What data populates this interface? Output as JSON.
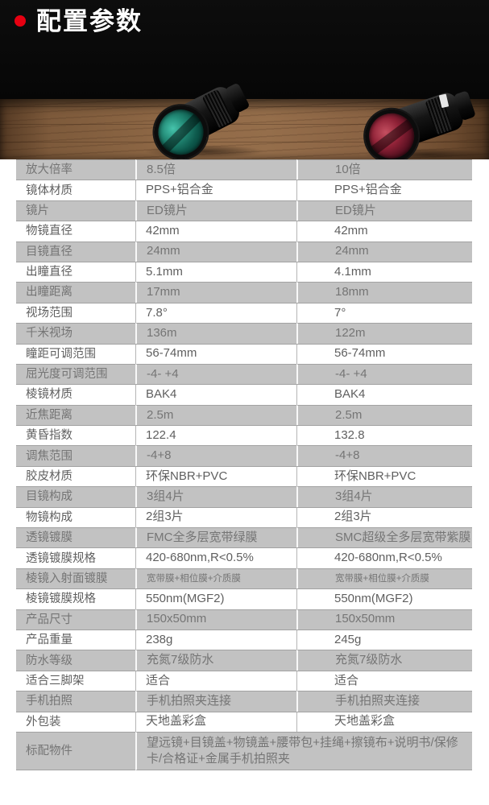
{
  "header": {
    "title": "配置参数"
  },
  "colors": {
    "bullet_red": "#e60011",
    "row_gray": "#c2c2c2",
    "row_white": "#ffffff",
    "lens_left": "#238b77",
    "lens_right": "#8e2136"
  },
  "table": {
    "rows": [
      {
        "label": "放大倍率",
        "v1": "8.5倍",
        "v2": "10倍"
      },
      {
        "label": "镜体材质",
        "v1": "PPS+铝合金",
        "v2": "PPS+铝合金"
      },
      {
        "label": "镜片",
        "v1": "ED镜片",
        "v2": "ED镜片"
      },
      {
        "label": "物镜直径",
        "v1": "42mm",
        "v2": "42mm"
      },
      {
        "label": "目镜直径",
        "v1": "24mm",
        "v2": "24mm"
      },
      {
        "label": "出瞳直径",
        "v1": "5.1mm",
        "v2": "4.1mm"
      },
      {
        "label": "出瞳距离",
        "v1": "17mm",
        "v2": "18mm"
      },
      {
        "label": "视场范围",
        "v1": "7.8°",
        "v2": "7°"
      },
      {
        "label": "千米视场",
        "v1": "136m",
        "v2": "122m"
      },
      {
        "label": "瞳距可调范围",
        "v1": "56-74mm",
        "v2": "56-74mm"
      },
      {
        "label": "屈光度可调范围",
        "v1": "-4- +4",
        "v2": "-4- +4"
      },
      {
        "label": "棱镜材质",
        "v1": "BAK4",
        "v2": "BAK4"
      },
      {
        "label": "近焦距离",
        "v1": "2.5m",
        "v2": "2.5m"
      },
      {
        "label": "黄昏指数",
        "v1": "122.4",
        "v2": "132.8"
      },
      {
        "label": "调焦范围",
        "v1": "-4+8",
        "v2": "-4+8"
      },
      {
        "label": "胶皮材质",
        "v1": "环保NBR+PVC",
        "v2": "环保NBR+PVC"
      },
      {
        "label": "目镜构成",
        "v1": "3组4片",
        "v2": "3组4片"
      },
      {
        "label": "物镜构成",
        "v1": "2组3片",
        "v2": "2组3片"
      },
      {
        "label": "透镜镀膜",
        "v1": "FMC全多层宽带绿膜",
        "v2": "SMC超级全多层宽带紫膜"
      },
      {
        "label": "透镜镀膜规格",
        "v1": "420-680nm,R<0.5%",
        "v2": "420-680nm,R<0.5%"
      },
      {
        "label": "棱镜入射面镀膜",
        "v1": "宽带膜+相位膜+介质膜",
        "v2": "宽带膜+相位膜+介质膜",
        "small": true
      },
      {
        "label": "棱镜镀膜规格",
        "v1": "550nm(MGF2)",
        "v2": "550nm(MGF2)"
      },
      {
        "label": "产品尺寸",
        "v1": "150x50mm",
        "v2": "150x50mm"
      },
      {
        "label": "产品重量",
        "v1": "238g",
        "v2": "245g"
      },
      {
        "label": "防水等级",
        "v1": "充氮7级防水",
        "v2": "充氮7级防水"
      },
      {
        "label": "适合三脚架",
        "v1": "适合",
        "v2": "适合"
      },
      {
        "label": "手机拍照",
        "v1": "手机拍照夹连接",
        "v2": "手机拍照夹连接"
      },
      {
        "label": "外包装",
        "v1": "天地盖彩盒",
        "v2": "天地盖彩盒"
      },
      {
        "label": "标配物件",
        "merged": "望远镜+目镜盖+物镜盖+腰带包+挂绳+擦镜布+说明书/保修卡/合格证+金属手机拍照夹"
      }
    ]
  }
}
